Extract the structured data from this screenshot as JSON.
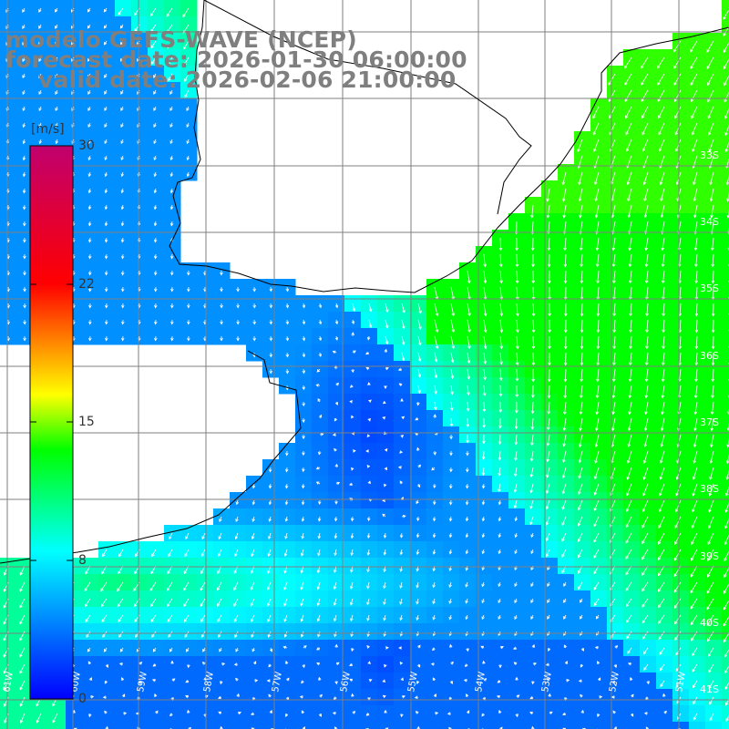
{
  "title": {
    "line1": "modelo GEFS-WAVE (NCEP)",
    "line2": "forecast date: 2026-01-30 06:00:00",
    "line3": "valid date: 2026-02-06 21:00:00"
  },
  "colorbar": {
    "unit": "[m/s]",
    "ticks": [
      "30",
      "22",
      "15",
      "8",
      "0"
    ],
    "stops": [
      "#0000ff",
      "#00ffff",
      "#00ff00",
      "#ffff00",
      "#ff0000",
      "#c0006f"
    ]
  },
  "map": {
    "lat_labels": [
      "33S",
      "34S",
      "35S",
      "36S",
      "37S",
      "38S",
      "39S",
      "40S",
      "41S"
    ],
    "lon_labels": [
      "61W",
      "60W",
      "59W",
      "58W",
      "57W",
      "56W",
      "55W",
      "54W",
      "53W",
      "52W",
      "51W"
    ],
    "land_color": "#ffffff",
    "coast_color": "#000000",
    "grid_color": "#7f7f7f",
    "arrow_color": "#ffffff"
  },
  "chart_data": {
    "type": "heatmap",
    "variable": "wind speed",
    "units": "m/s",
    "color_range": [
      0,
      30
    ],
    "color_ticks": [
      0,
      8,
      15,
      22,
      30
    ],
    "fields": {
      "weak_zone_speed": 2,
      "near_coast_speed": 8,
      "southwest_band_speed": 11,
      "offshore_northeast_speed": 13,
      "peak_near_coast_speed": 14
    },
    "wind_direction": "mostly from the north-northeast, arrows pointing south-southwest"
  }
}
